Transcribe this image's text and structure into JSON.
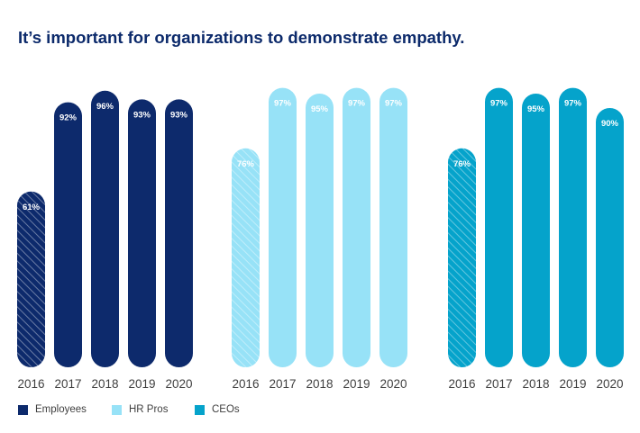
{
  "chart_data": {
    "type": "bar",
    "title": "It’s important for organizations to demonstrate empathy.",
    "categories": [
      "2016",
      "2017",
      "2018",
      "2019",
      "2020"
    ],
    "ylim": [
      0,
      100
    ],
    "grid": false,
    "legend_position": "bottom-left",
    "hatched_categories": [
      "2016"
    ],
    "series": [
      {
        "name": "Employees",
        "color": "#0d2a6c",
        "values": [
          61,
          92,
          96,
          93,
          93
        ],
        "labels": [
          "61%",
          "92%",
          "96%",
          "93%",
          "93%"
        ]
      },
      {
        "name": "HR Pros",
        "color": "#97e2f7",
        "values": [
          76,
          97,
          95,
          97,
          97
        ],
        "labels": [
          "76%",
          "97%",
          "95%",
          "97%",
          "97%"
        ]
      },
      {
        "name": "CEOs",
        "color": "#05a3cb",
        "values": [
          76,
          97,
          95,
          97,
          90
        ],
        "labels": [
          "76%",
          "97%",
          "95%",
          "97%",
          "90%"
        ]
      }
    ]
  }
}
